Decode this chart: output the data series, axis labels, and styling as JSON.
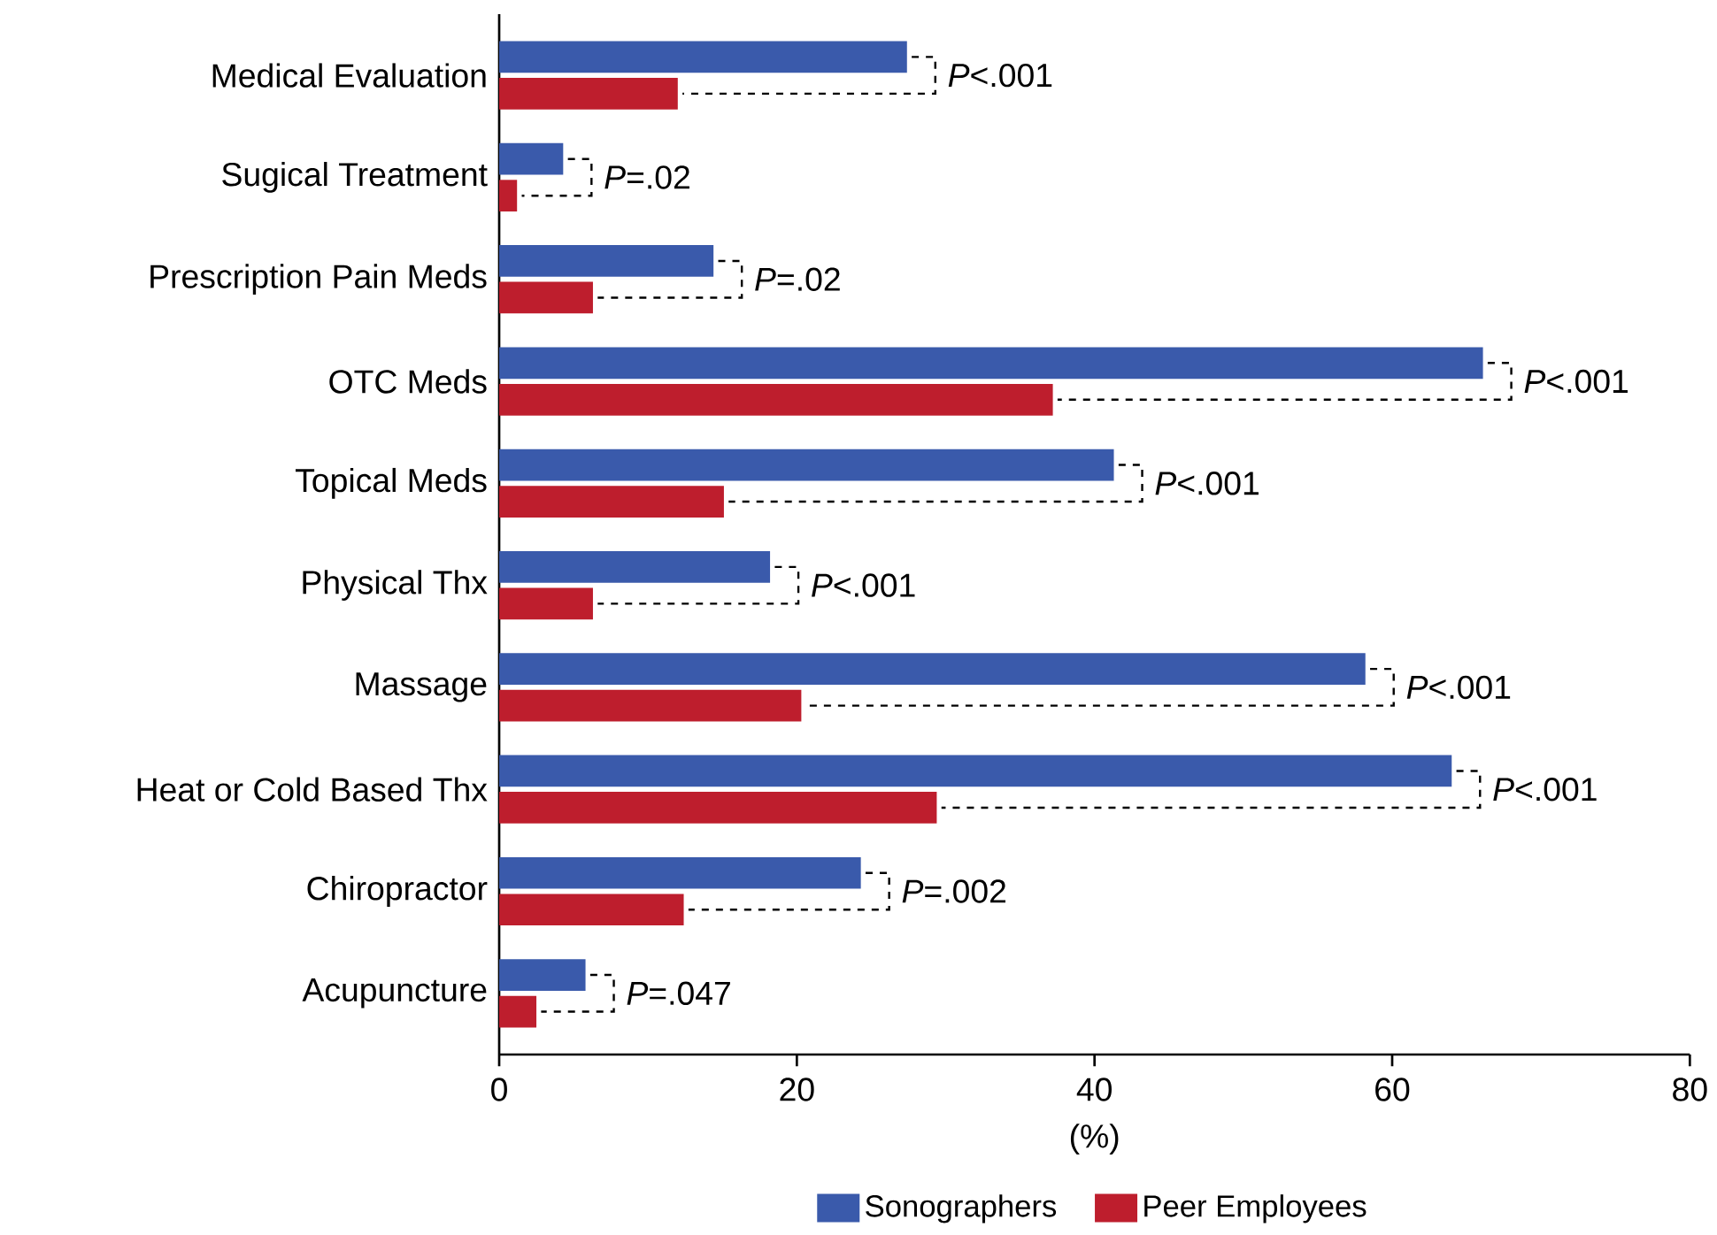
{
  "chart_data": {
    "type": "bar",
    "orientation": "horizontal",
    "xlabel": "(%)",
    "categories": [
      "Medical Evaluation",
      "Sugical Treatment",
      "Prescription Pain Meds",
      "OTC Meds",
      "Topical Meds",
      "Physical Thx",
      "Massage",
      "Heat or Cold Based Thx",
      "Chiropractor",
      "Acupuncture"
    ],
    "series": [
      {
        "name": "Sonographers",
        "color": "#3a5aab",
        "values": [
          27.4,
          4.3,
          14.4,
          66.1,
          41.3,
          18.2,
          58.2,
          64.0,
          24.3,
          5.8
        ]
      },
      {
        "name": "Peer Employees",
        "color": "#be1e2d",
        "values": [
          12.0,
          1.2,
          6.3,
          37.2,
          15.1,
          6.3,
          20.3,
          29.4,
          12.4,
          2.5
        ]
      }
    ],
    "xlim": [
      0,
      80
    ],
    "xticks": [
      0,
      20,
      40,
      60,
      80
    ],
    "grid": false,
    "legend": "bottom",
    "annotations": [
      {
        "text": "*P*<.001",
        "x": 27.4,
        "y": "Medical Evaluation"
      },
      {
        "text": "*P*=.02",
        "x": 4.3,
        "y": "Sugical Treatment"
      },
      {
        "text": "*P*=.02",
        "x": 14.4,
        "y": "Prescription Pain Meds"
      },
      {
        "text": "*P*<.001",
        "x": 66.1,
        "y": "OTC Meds"
      },
      {
        "text": "*P*<.001",
        "x": 41.3,
        "y": "Topical Meds"
      },
      {
        "text": "*P*<.001",
        "x": 18.2,
        "y": "Physical Thx"
      },
      {
        "text": "*P*<.001",
        "x": 58.2,
        "y": "Massage"
      },
      {
        "text": "*P*<.001",
        "x": 64.0,
        "y": "Heat or Cold Based Thx"
      },
      {
        "text": "*P*=.002",
        "x": 24.3,
        "y": "Chiropractor"
      },
      {
        "text": "*P*=.047",
        "x": 5.8,
        "y": "Acupuncture"
      }
    ]
  }
}
